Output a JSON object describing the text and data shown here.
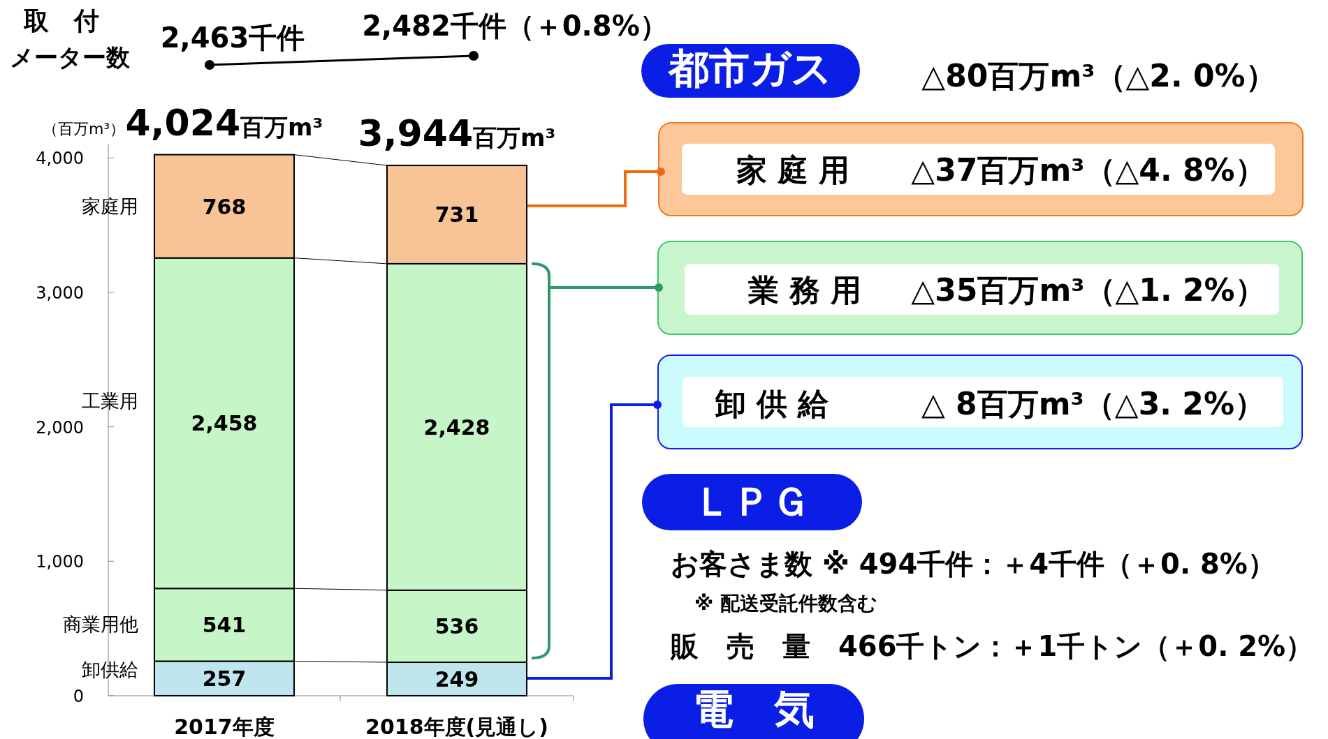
{
  "chart_data": {
    "type": "bar",
    "stacked": true,
    "categories": [
      "2017年度",
      "2018年度(見通し)"
    ],
    "series": [
      {
        "name": "卸供給",
        "color": "#bfe6ee",
        "values": [
          257,
          249
        ]
      },
      {
        "name": "商業用他",
        "color": "#c6f5c8",
        "values": [
          541,
          536
        ]
      },
      {
        "name": "工業用",
        "color": "#c6f5c8",
        "values": [
          2458,
          2428
        ]
      },
      {
        "name": "家庭用",
        "color": "#f8c496",
        "values": [
          768,
          731
        ]
      }
    ],
    "ylabel": "（百万m³）",
    "ylim": [
      0,
      4100
    ],
    "yticks": [
      0,
      {
        "value": 1000,
        "label": "1,000"
      },
      {
        "value": 2000,
        "label": "2,000"
      },
      {
        "value": 3000,
        "label": "3,000"
      },
      {
        "value": 4000,
        "label": "4,000"
      }
    ],
    "value_labels": [
      [
        "257",
        "249"
      ],
      [
        "541",
        "536"
      ],
      [
        "2,458",
        "2,428"
      ],
      [
        "768",
        "731"
      ]
    ],
    "totals": [
      "4,024百万m³",
      "3,944百万m³"
    ],
    "grid": false,
    "annotations": [
      "取　付",
      "メーター数",
      "2,463千件",
      "2,482千件（＋0.8%）",
      "都市ガス",
      "△80百万m³（△2. 0%）",
      "家 庭 用",
      "△37百万m³（△4. 8%）",
      "業 務 用",
      "△35百万m³（△1. 2%）",
      "卸 供 給",
      "△  8百万m³（△3. 2%）",
      "ＬＰＧ",
      "お客さま数 ※  494千件：＋4千件（＋0. 8%）",
      "※ 配送受託件数含む",
      "販　売　量　466千トン：＋1千トン（＋0. 2%）",
      "電　気"
    ]
  }
}
